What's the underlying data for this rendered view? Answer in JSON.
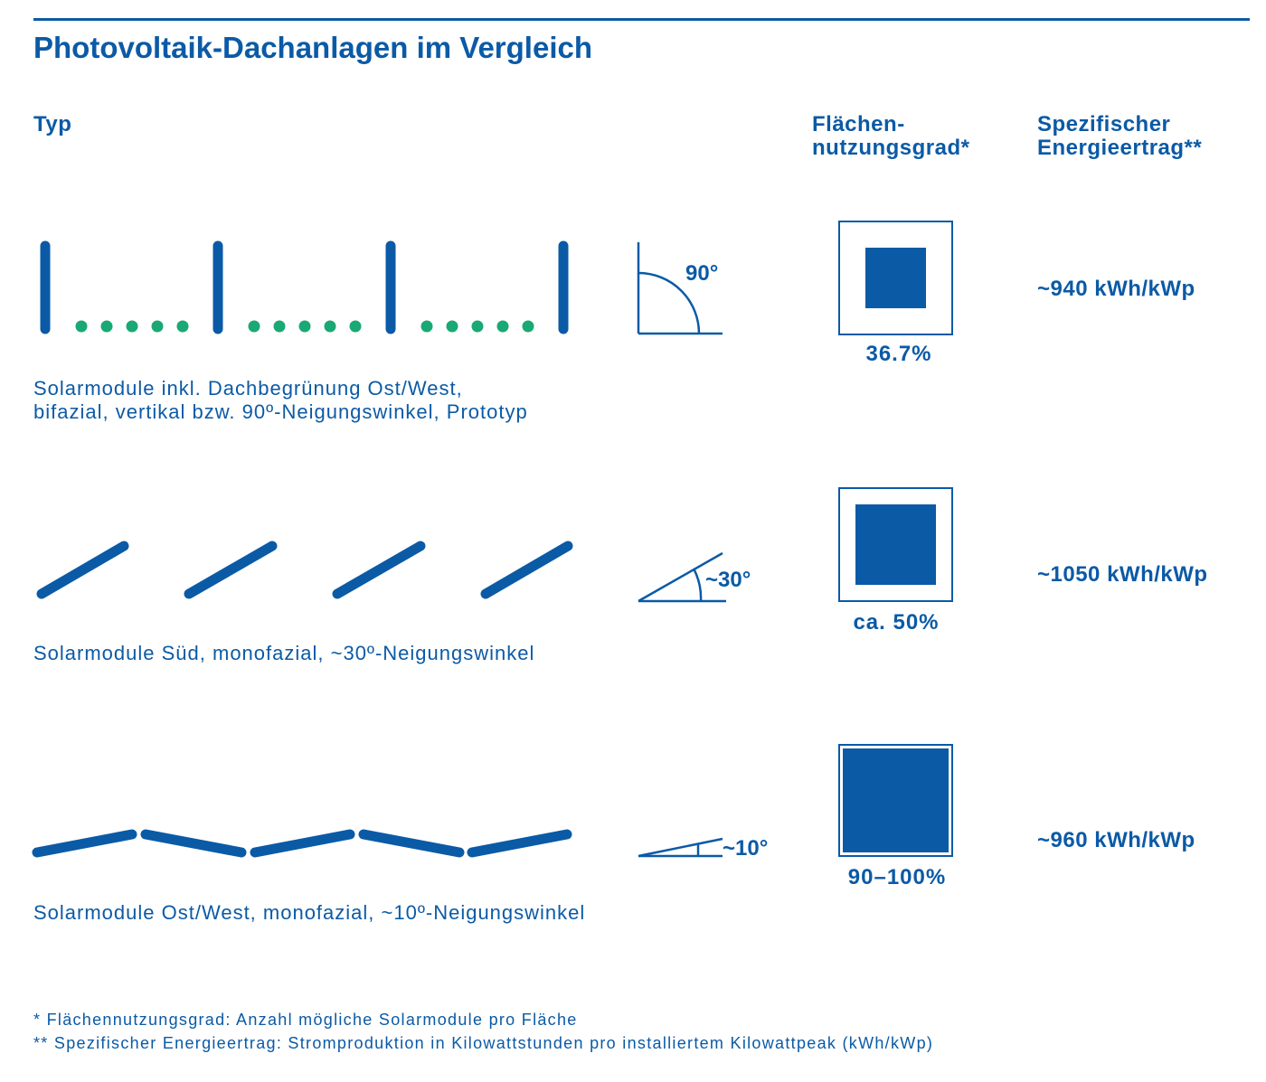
{
  "title": "Photovoltaik-Dachanlagen im Vergleich",
  "columns": {
    "type": "Typ",
    "coverage_line1": "Flächen-",
    "coverage_line2": "nutzungsgrad*",
    "yield_line1": "Spezifischer",
    "yield_line2": "Energieertrag**"
  },
  "rows": [
    {
      "angle": "90°",
      "coverage": "36.7%",
      "coverage_fraction": 0.367,
      "yield": "~940 kWh/kWp",
      "desc_line1": "Solarmodule inkl. Dachbegrünung Ost/West,",
      "desc_line2": "bifazial, vertikal bzw. 90º-Neigungswinkel, Prototyp"
    },
    {
      "angle": "~30°",
      "coverage": "ca. 50%",
      "coverage_fraction": 0.5,
      "yield": "~1050 kWh/kWp",
      "desc_line1": "Solarmodule Süd, monofazial, ~30º-Neigungswinkel"
    },
    {
      "angle": "~10°",
      "coverage": "90–100%",
      "coverage_fraction": 0.95,
      "yield": "~960 kWh/kWp",
      "desc_line1": "Solarmodule Ost/West, monofazial, ~10º-Neigungswinkel"
    }
  ],
  "footnotes": {
    "note1": "* Flächennutzungsgrad: Anzahl mögliche Solarmodule pro Fläche",
    "note2": "** Spezifischer Energieertrag: Stromproduktion in Kilowattstunden pro installiertem Kilowattpeak (kWh/kWp)"
  },
  "colors": {
    "primary": "#0b5aa6",
    "green": "#1aa874"
  }
}
